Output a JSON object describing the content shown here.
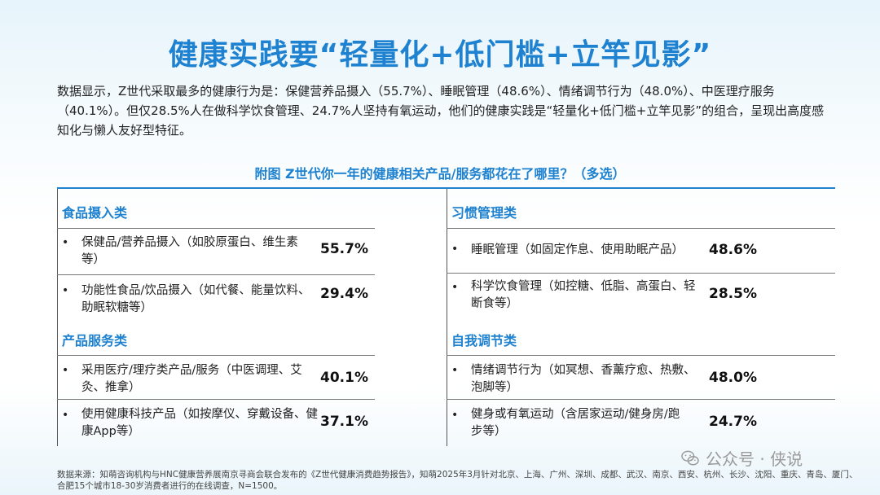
{
  "title": "健康实践要“轻量化+低门槛+立竿见影”",
  "intro": "数据显示，Z世代采取最多的健康行为是：保健营养品摄入（55.7%）、睡眠管理（48.6%）、情绪调节行为（48.0%）、中医理疗服务（40.1%）。但仅28.5%人在做科学饮食管理、24.7%人坚持有氧运动，他们的健康实践是“轻量化+低门槛+立竿见影”的组合，呈现出高度感知化与懒人友好型特征。",
  "figure_title": "附图  Z世代你一年的健康相关产品/服务都花在了哪里？（多选）",
  "left": {
    "cat1": "食品摄入类",
    "cat2": "产品服务类",
    "items": [
      {
        "text": "保健品/营养品摄入（如胶原蛋白、维生素等）",
        "pct": "55.7%"
      },
      {
        "text": "功能性食品/饮品摄入（如代餐、能量饮料、助眠软糖等）",
        "pct": "29.4%"
      },
      {
        "text": "采用医疗/理疗类产品/服务（中医调理、艾灸、推拿）",
        "pct": "40.1%"
      },
      {
        "text": "使用健康科技产品（如按摩仪、穿戴设备、健康App等）",
        "pct": "37.1%"
      }
    ]
  },
  "right": {
    "cat1": "习惯管理类",
    "cat2": "自我调节类",
    "items": [
      {
        "text": "睡眠管理（如固定作息、使用助眠产品）",
        "pct": "48.6%"
      },
      {
        "text": "科学饮食管理（如控糖、低脂、高蛋白、轻断食等）",
        "pct": "28.5%"
      },
      {
        "text": "情绪调节行为（如冥想、香薰疗愈、热敷、泡脚等）",
        "pct": "48.0%"
      },
      {
        "text": "健身或有氧运动（含居家运动/健身房/跑步等）",
        "pct": "24.7%"
      }
    ]
  },
  "bullet": "•",
  "watermark": "公众号 · 侠说",
  "source": "数据来源：知萌咨询机构与HNC健康营养展南京寻商会联合发布的《Z世代健康消费趋势报告》，知萌2025年3月针对北京、上海、广州、深圳、成都、武汉、南京、西安、杭州、长沙、沈阳、重庆、青岛、厦门、合肥15个城市18-30岁消费者进行的在线调查，N=1500。"
}
